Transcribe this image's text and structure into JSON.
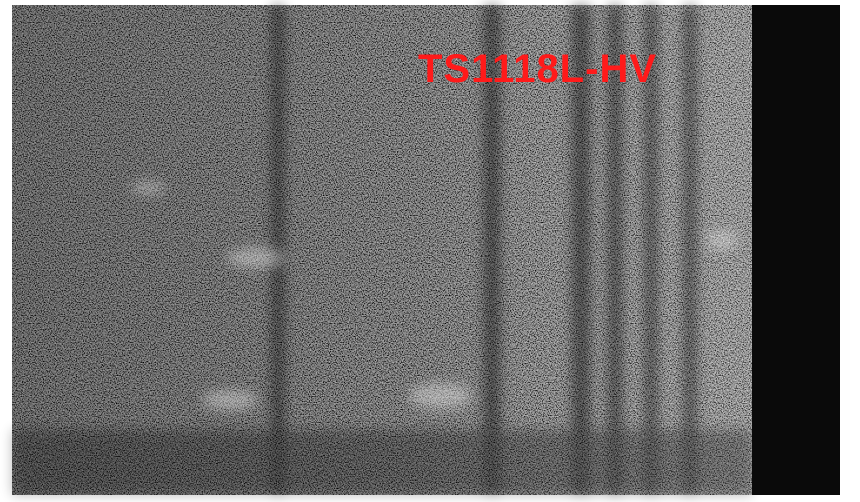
{
  "image": {
    "label": "TS1118L-HV"
  }
}
